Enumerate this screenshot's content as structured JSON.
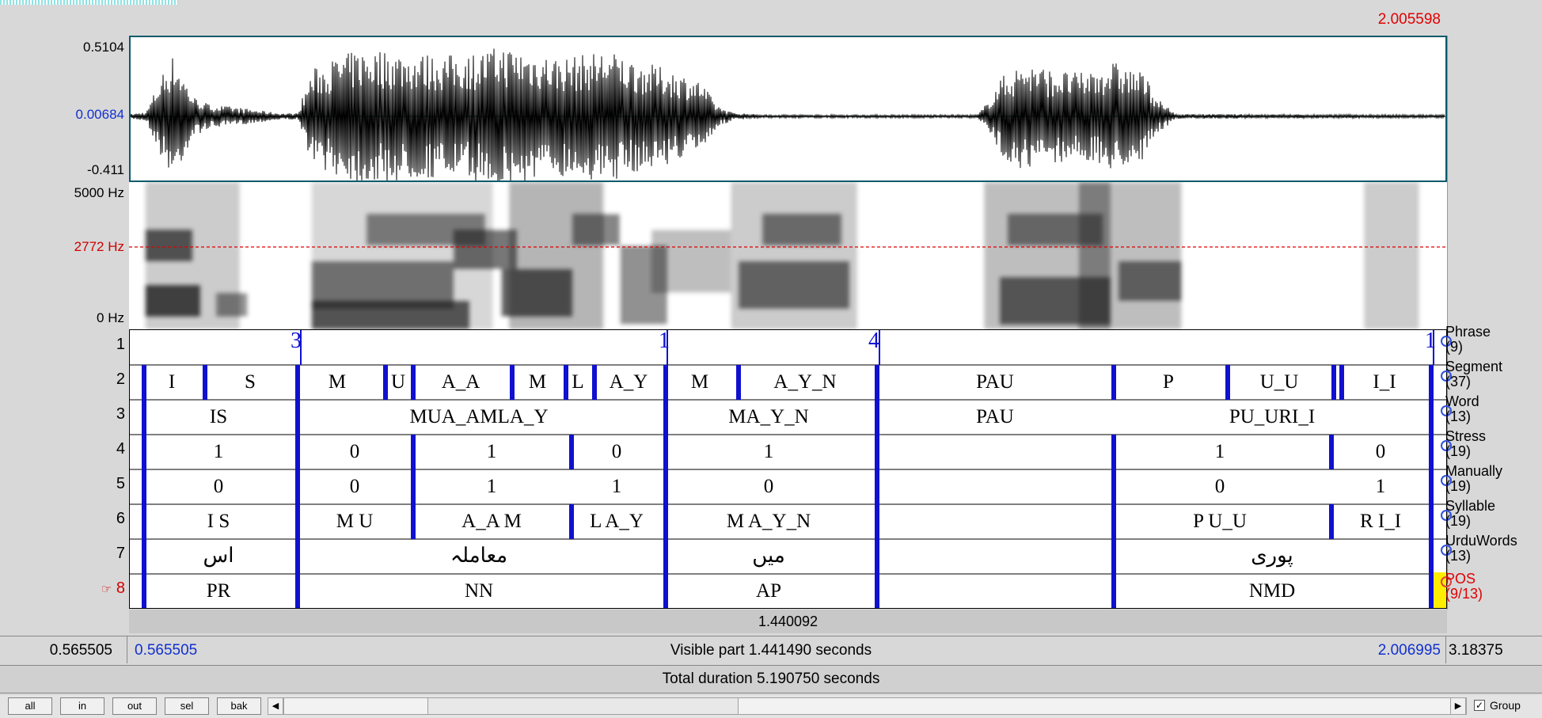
{
  "waveform": {
    "max_label": "0.5104",
    "mid_label": "0.00684",
    "min_label": "-0.411",
    "selection_end_label": "2.005598"
  },
  "spectrogram": {
    "top_label": "5000 Hz",
    "cursor_label": "2772 Hz",
    "bottom_label": "0 Hz"
  },
  "tiers": [
    {
      "number": "1",
      "name": "Phrase",
      "count": "(9)",
      "selected": false
    },
    {
      "number": "2",
      "name": "Segment",
      "count": "(37)",
      "selected": false
    },
    {
      "number": "3",
      "name": "Word",
      "count": "(13)",
      "selected": false
    },
    {
      "number": "4",
      "name": "Stress",
      "count": "(19)",
      "selected": false
    },
    {
      "number": "5",
      "name": "Manually",
      "count": "(19)",
      "selected": false
    },
    {
      "number": "6",
      "name": "Syllable",
      "count": "(19)",
      "selected": false
    },
    {
      "number": "7",
      "name": "UrduWords",
      "count": "(13)",
      "selected": false
    },
    {
      "number": "8",
      "name": "POS",
      "count": "(9/13)",
      "selected": true,
      "marker": "☞"
    }
  ],
  "tier1_points": [
    "3",
    "1",
    "4",
    "1"
  ],
  "tier_labels": {
    "segment": [
      "I",
      "S",
      "M",
      "U",
      "A_A",
      "M",
      "L",
      "A_Y",
      "M",
      "A_Y_N",
      "PAU",
      "P",
      "U_U",
      "I_I"
    ],
    "word": [
      "IS",
      "MUA_AMLA_Y",
      "MA_Y_N",
      "PAU",
      "PU_URI_I"
    ],
    "stress": [
      "1",
      "0",
      "1",
      "0",
      "1",
      "1",
      "0"
    ],
    "manually": [
      "0",
      "0",
      "1",
      "1",
      "0",
      "0",
      "1"
    ],
    "syllable": [
      "I S",
      "M U",
      "A_A M",
      "L A_Y",
      "M A_Y_N",
      "P U_U",
      "R I_I"
    ],
    "urdu": [
      "اس",
      "معاملہ",
      "میں",
      "پوری"
    ],
    "pos": [
      "PR",
      "NN",
      "AP",
      "NMD"
    ]
  },
  "footer": {
    "selection_duration": "1.440092",
    "left_time": "0.565505",
    "visible_start": "0.565505",
    "visible_part": "Visible part 1.441490 seconds",
    "visible_end": "2.006995",
    "right_time": "3.18375",
    "total_duration": "Total duration 5.190750 seconds"
  },
  "buttons": [
    "all",
    "in",
    "out",
    "sel",
    "bak"
  ],
  "group": {
    "label": "Group",
    "checked": true,
    "check_glyph": "✓"
  },
  "arrows": {
    "left": "◀",
    "right": "▶"
  }
}
